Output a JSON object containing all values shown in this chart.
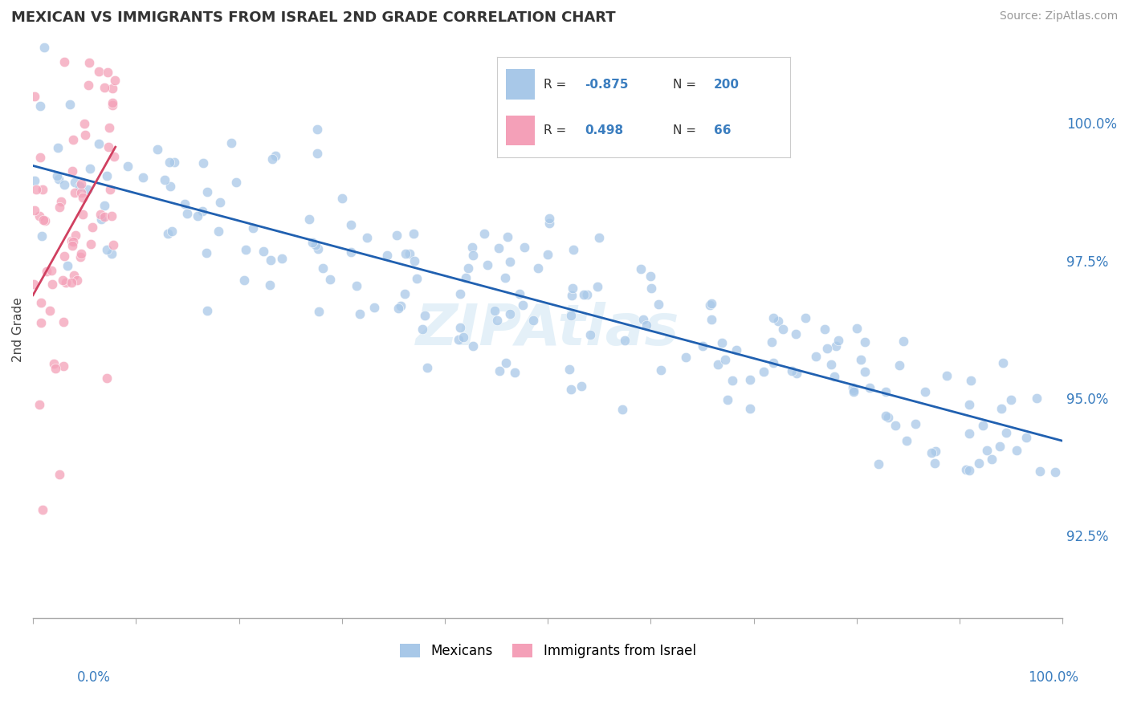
{
  "title": "MEXICAN VS IMMIGRANTS FROM ISRAEL 2ND GRADE CORRELATION CHART",
  "source": "Source: ZipAtlas.com",
  "ylabel": "2nd Grade",
  "blue_R": -0.875,
  "blue_N": 200,
  "pink_R": 0.498,
  "pink_N": 66,
  "blue_color": "#a8c8e8",
  "pink_color": "#f4a0b8",
  "blue_line_color": "#2060b0",
  "pink_line_color": "#d04060",
  "background_color": "#ffffff",
  "grid_color": "#cccccc",
  "right_ytick_labels": [
    "100.0%",
    "97.5%",
    "95.0%",
    "92.5%"
  ],
  "right_ytick_values": [
    100.0,
    97.5,
    95.0,
    92.5
  ],
  "xlim": [
    0.0,
    100.0
  ],
  "ylim": [
    91.0,
    101.5
  ],
  "watermark": "ZIPAtlas",
  "legend_R_color": "#3a7dbf",
  "legend_box_color": "#e8eef5",
  "dot_size": 80
}
